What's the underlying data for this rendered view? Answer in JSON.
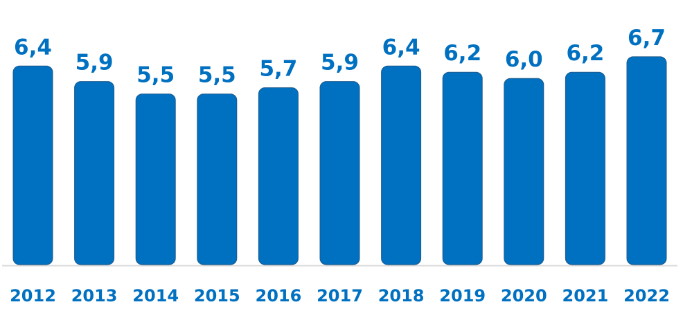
{
  "chart_data": {
    "type": "bar",
    "title": "",
    "xlabel": "",
    "ylabel": "",
    "categories": [
      "2012",
      "2013",
      "2014",
      "2015",
      "2016",
      "2017",
      "2018",
      "2019",
      "2020",
      "2021",
      "2022"
    ],
    "values": [
      6.4,
      5.9,
      5.5,
      5.5,
      5.7,
      5.9,
      6.4,
      6.2,
      6.0,
      6.2,
      6.7
    ],
    "value_labels": [
      "6,4",
      "5,9",
      "5,5",
      "5,5",
      "5,7",
      "5,9",
      "6,4",
      "6,2",
      "6,0",
      "6,2",
      "6,7"
    ],
    "ylim": [
      0,
      6.7
    ],
    "grid": false,
    "legend": "none",
    "colors": {
      "bar": "#0070C0",
      "bar_border": "#1F5A8C",
      "axis": "#D9D9D9",
      "text": "#0070C0"
    }
  }
}
